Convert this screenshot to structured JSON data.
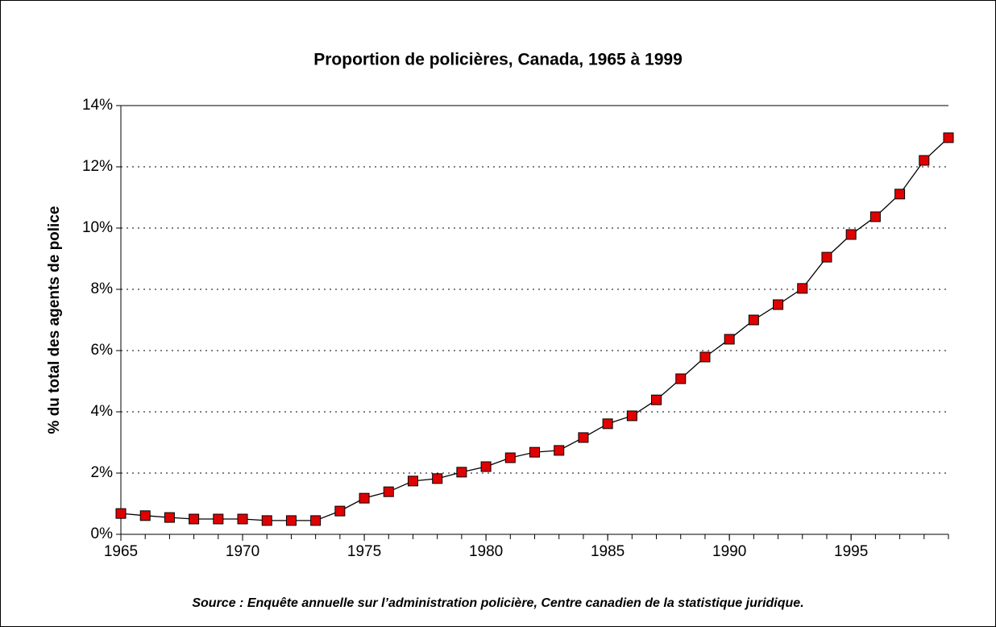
{
  "chart_data": {
    "type": "line",
    "title": "Proportion de policières, Canada, 1965 à 1999",
    "y_label": "% du total des agents de police",
    "source": "Source : Enquête annuelle sur l’administration policière, Centre canadien de la statistique juridique.",
    "x": [
      1965,
      1966,
      1967,
      1968,
      1969,
      1970,
      1971,
      1972,
      1973,
      1974,
      1975,
      1976,
      1977,
      1978,
      1979,
      1980,
      1981,
      1982,
      1983,
      1984,
      1985,
      1986,
      1987,
      1988,
      1989,
      1990,
      1991,
      1992,
      1993,
      1994,
      1995,
      1996,
      1997,
      1998,
      1999
    ],
    "values": [
      0.68,
      0.61,
      0.55,
      0.5,
      0.5,
      0.5,
      0.45,
      0.45,
      0.45,
      0.76,
      1.18,
      1.39,
      1.74,
      1.82,
      2.03,
      2.21,
      2.5,
      2.68,
      2.74,
      3.16,
      3.61,
      3.87,
      4.39,
      5.08,
      5.79,
      6.37,
      7.0,
      7.5,
      8.03,
      9.05,
      9.79,
      10.37,
      11.11,
      12.21,
      12.95
    ],
    "color": "#e00000",
    "line_color": "#000000",
    "xlim": [
      1965,
      1999
    ],
    "xticks": [
      1965,
      1970,
      1975,
      1980,
      1985,
      1990,
      1995
    ],
    "ylim": [
      0,
      14
    ],
    "yticks": [
      {
        "value": 0,
        "label": "0%"
      },
      {
        "value": 2,
        "label": "2%"
      },
      {
        "value": 4,
        "label": "4%"
      },
      {
        "value": 6,
        "label": "6%"
      },
      {
        "value": 8,
        "label": "8%"
      },
      {
        "value": 10,
        "label": "10%"
      },
      {
        "value": 12,
        "label": "12%"
      },
      {
        "value": 14,
        "label": "14%"
      }
    ],
    "grid": true
  }
}
